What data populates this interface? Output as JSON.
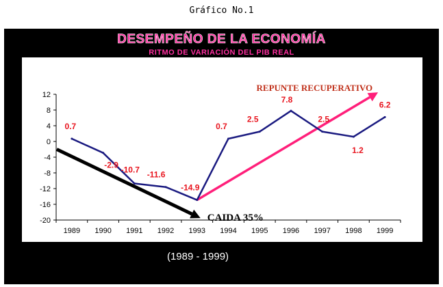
{
  "caption": "Gráfico No.1",
  "title": "DESEMPEÑO DE LA ECONOMÍA",
  "subtitle": "RITMO DE VARIACIÓN DEL PIB REAL",
  "footer": "(1989 - 1999)",
  "chart_data": {
    "type": "line",
    "x": [
      "1989",
      "1990",
      "1991",
      "1992",
      "1993",
      "1994",
      "1995",
      "1996",
      "1997",
      "1998",
      "1999"
    ],
    "series": [
      {
        "values": [
          0.7,
          -2.9,
          -10.7,
          -11.6,
          -14.9,
          0.7,
          2.5,
          7.8,
          2.5,
          1.2,
          6.2
        ]
      }
    ],
    "data_labels": [
      "0.7",
      "-2.9",
      "-10.7",
      "-11.6",
      "-14.9",
      "0.7",
      "2.5",
      "7.8",
      "2.5",
      "1.2",
      "6.2"
    ],
    "ylim": [
      -20,
      12
    ],
    "yticks": [
      12,
      8,
      4,
      0,
      -4,
      -8,
      -12,
      -16,
      -20
    ],
    "grid": false,
    "annotations": [
      {
        "text": "REPUNTE RECUPERATIVO",
        "color": "#ff1f7a",
        "from": [
          "1993",
          -14.9
        ],
        "to": [
          "1999",
          12.5
        ]
      },
      {
        "text": "CAIDA 35%",
        "color": "#000000",
        "from": [
          "1989",
          -2
        ],
        "to": [
          "1993",
          -19.5
        ]
      }
    ],
    "colors": {
      "line": "#1a1a80",
      "labels": "#e8141e",
      "rise_arrow": "#ff1f7a",
      "fall_arrow": "#000000"
    }
  }
}
